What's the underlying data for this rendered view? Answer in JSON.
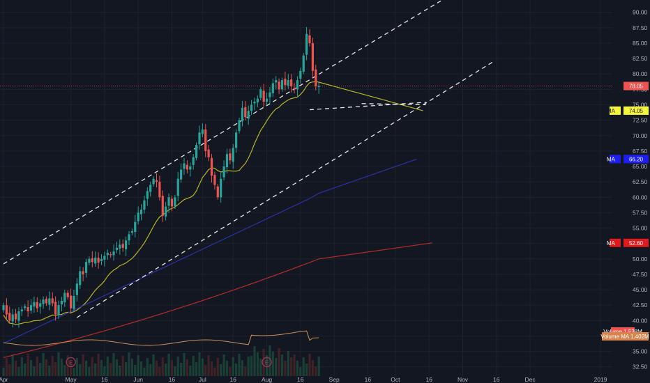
{
  "chart_data": {
    "type": "candlestick",
    "price_axis": {
      "min": 31,
      "max": 92,
      "ticks": [
        "90.00",
        "87.50",
        "85.00",
        "82.50",
        "80.00",
        "77.50",
        "75.00",
        "72.50",
        "70.00",
        "67.50",
        "65.00",
        "62.50",
        "60.00",
        "57.50",
        "55.00",
        "52.50",
        "50.00",
        "47.50",
        "45.00",
        "42.50",
        "40.00",
        "37.50",
        "35.00",
        "32.50"
      ]
    },
    "time_axis": {
      "labels": [
        {
          "label": "Apr",
          "bar": 0
        },
        {
          "label": "May",
          "bar": 22
        },
        {
          "label": "16",
          "bar": 33
        },
        {
          "label": "Jun",
          "bar": 44
        },
        {
          "label": "16",
          "bar": 55
        },
        {
          "label": "Jul",
          "bar": 65
        },
        {
          "label": "16",
          "bar": 75
        },
        {
          "label": "Aug",
          "bar": 86
        },
        {
          "label": "16",
          "bar": 97
        },
        {
          "label": "Sep",
          "bar": 108
        },
        {
          "label": "16",
          "bar": 119
        },
        {
          "label": "Oct",
          "bar": 128
        },
        {
          "label": "16",
          "bar": 139
        },
        {
          "label": "Nov",
          "bar": 150
        },
        {
          "label": "16",
          "bar": 161
        },
        {
          "label": "Dec",
          "bar": 172
        },
        {
          "label": "2019",
          "bar": 195
        }
      ]
    },
    "closes": [
      42.5,
      41.0,
      40.0,
      41.0,
      40.2,
      41.5,
      41.8,
      42.3,
      41.5,
      42.5,
      43.0,
      42.0,
      42.8,
      43.4,
      42.8,
      43.6,
      42.8,
      41.0,
      42.5,
      43.2,
      44.5,
      43.8,
      42.0,
      44.0,
      46.0,
      48.0,
      47.5,
      49.5,
      50.0,
      49.5,
      50.2,
      49.4,
      50.0,
      50.5,
      51.0,
      50.6,
      51.2,
      51.8,
      52.3,
      51.8,
      53.0,
      54.0,
      54.5,
      56.0,
      57.5,
      58.0,
      59.5,
      61.0,
      62.0,
      63.0,
      62.5,
      60.0,
      57.0,
      58.5,
      60.0,
      58.5,
      60.0,
      63.0,
      64.5,
      65.5,
      64.5,
      65.0,
      66.5,
      68.5,
      70.5,
      71.0,
      67.5,
      66.5,
      63.5,
      62.0,
      60.0,
      63.0,
      65.0,
      67.0,
      66.0,
      68.0,
      70.5,
      72.5,
      74.5,
      73.0,
      74.0,
      75.0,
      75.5,
      76.0,
      77.5,
      75.5,
      76.0,
      77.0,
      78.5,
      79.0,
      77.5,
      79.0,
      78.2,
      79.0,
      78.0,
      77.5,
      79.0,
      80.5,
      83.0,
      86.5,
      85.0,
      80.5,
      78.0,
      78.05
    ],
    "annotations": {
      "last_price": "78.05",
      "ma_labels": [
        {
          "text": "MA",
          "value": "74.05",
          "color": "#f5f53a",
          "price": 74.05
        },
        {
          "text": "MA",
          "value": "66.20",
          "color": "#1e1ef0",
          "price": 66.2
        },
        {
          "text": "MA",
          "value": "52.60",
          "color": "#e01b1b",
          "price": 52.6
        }
      ],
      "volume_label": "Volume",
      "volume_value": "1.538M",
      "volume_ma_label": "Volume MA",
      "volume_ma_value": "1.402M",
      "earnings_marker": "E"
    },
    "colors": {
      "background": "#131722",
      "up": "#26a69a",
      "down": "#ef5350",
      "ma_short": "#b5b524",
      "ma_mid": "#2933a3",
      "ma_long": "#b72b2b",
      "volume_ma": "#c8915a"
    }
  }
}
